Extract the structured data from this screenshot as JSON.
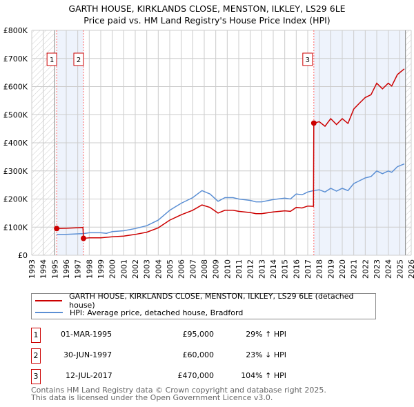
{
  "title_line1": "GARTH HOUSE, KIRKLANDS CLOSE, MENSTON, ILKLEY, LS29 6LE",
  "title_line2": "Price paid vs. HM Land Registry's House Price Index (HPI)",
  "chart_data": {
    "type": "line",
    "title": "GARTH HOUSE, KIRKLANDS CLOSE, MENSTON, ILKLEY, LS29 6LE - Price paid vs. HM Land Registry's House Price Index (HPI)",
    "xlim": [
      1993,
      2026
    ],
    "ylim": [
      0,
      800000
    ],
    "x_ticks": [
      "1993",
      "1994",
      "1995",
      "1996",
      "1997",
      "1998",
      "1999",
      "2000",
      "2001",
      "2002",
      "2003",
      "2004",
      "2005",
      "2006",
      "2007",
      "2008",
      "2009",
      "2010",
      "2011",
      "2012",
      "2013",
      "2014",
      "2015",
      "2016",
      "2017",
      "2018",
      "2019",
      "2020",
      "2021",
      "2022",
      "2023",
      "2024",
      "2025",
      "2026"
    ],
    "y_ticks": [
      {
        "v": 0,
        "l": "£0"
      },
      {
        "v": 100000,
        "l": "£100K"
      },
      {
        "v": 200000,
        "l": "£200K"
      },
      {
        "v": 300000,
        "l": "£300K"
      },
      {
        "v": 400000,
        "l": "£400K"
      },
      {
        "v": 500000,
        "l": "£500K"
      },
      {
        "v": 600000,
        "l": "£600K"
      },
      {
        "v": 700000,
        "l": "£700K"
      },
      {
        "v": 800000,
        "l": "£800K"
      }
    ],
    "grid": true,
    "data_range": [
      1995.0,
      2025.5
    ],
    "series": [
      {
        "name": "GARTH HOUSE, KIRKLANDS CLOSE, MENSTON, ILKLEY, LS29 6LE (detached house)",
        "color": "#cc0000",
        "x": [
          1995.17,
          1996,
          1997,
          1997.45,
          1997.5,
          1998,
          1999,
          2000,
          2001,
          2002,
          2003,
          2004,
          2005,
          2006,
          2007,
          2007.8,
          2008.5,
          2009.2,
          2009.8,
          2010.5,
          2011,
          2012,
          2012.5,
          2013,
          2014,
          2015,
          2015.5,
          2016,
          2016.5,
          2017,
          2017.5,
          2017.53,
          2018,
          2018.5,
          2019,
          2019.5,
          2020,
          2020.5,
          2021,
          2021.5,
          2022,
          2022.5,
          2023,
          2023.5,
          2024,
          2024.3,
          2024.8,
          2025.4
        ],
        "y": [
          95000,
          96000,
          98000,
          99000,
          60000,
          62000,
          62000,
          65500,
          68000,
          74000,
          82000,
          97500,
          125000,
          144000,
          160000,
          179000,
          170000,
          150000,
          160000,
          160000,
          156000,
          152000,
          148000,
          148000,
          154000,
          158000,
          156000,
          170000,
          168000,
          175000,
          174000,
          470000,
          475000,
          459000,
          486000,
          465000,
          486000,
          469000,
          520000,
          541000,
          561000,
          571000,
          612000,
          592000,
          612000,
          602000,
          643000,
          663000
        ]
      },
      {
        "name": "HPI: Average price, detached house, Bradford",
        "color": "#5b8fd4",
        "x": [
          1995.17,
          1996,
          1997,
          1997.5,
          1998,
          1999,
          1999.5,
          2000,
          2001,
          2002,
          2003,
          2004,
          2005,
          2006,
          2007,
          2007.8,
          2008.5,
          2009.2,
          2009.8,
          2010.5,
          2011,
          2012,
          2012.5,
          2013,
          2014,
          2015,
          2015.5,
          2016,
          2016.5,
          2017,
          2017.5,
          2018,
          2018.5,
          2019,
          2019.5,
          2020,
          2020.5,
          2021,
          2021.5,
          2022,
          2022.5,
          2023,
          2023.5,
          2024,
          2024.3,
          2024.8,
          2025.4
        ],
        "y": [
          74000,
          74000,
          76000,
          77000,
          80000,
          80000,
          78000,
          84000,
          87000,
          95000,
          105000,
          125000,
          160000,
          185000,
          205000,
          230000,
          218000,
          192000,
          205000,
          205000,
          200000,
          195000,
          190000,
          190000,
          198000,
          203000,
          200000,
          218000,
          215000,
          225000,
          230000,
          233000,
          225000,
          238000,
          228000,
          238000,
          230000,
          255000,
          265000,
          275000,
          280000,
          300000,
          290000,
          300000,
          295000,
          315000,
          325000
        ]
      }
    ],
    "sales": [
      {
        "n": "1",
        "x": 1995.17,
        "y": 95000
      },
      {
        "n": "2",
        "x": 1997.5,
        "y": 60000
      },
      {
        "n": "3",
        "x": 2017.53,
        "y": 470000
      }
    ]
  },
  "legend": [
    {
      "label": "GARTH HOUSE, KIRKLANDS CLOSE, MENSTON, ILKLEY, LS29 6LE (detached house)",
      "color": "#cc0000"
    },
    {
      "label": "HPI: Average price, detached house, Bradford",
      "color": "#5b8fd4"
    }
  ],
  "transactions": [
    {
      "n": "1",
      "date": "01-MAR-1995",
      "price": "£95,000",
      "hpi": "29% ↑ HPI"
    },
    {
      "n": "2",
      "date": "30-JUN-1997",
      "price": "£60,000",
      "hpi": "23% ↓ HPI"
    },
    {
      "n": "3",
      "date": "12-JUL-2017",
      "price": "£470,000",
      "hpi": "104% ↑ HPI"
    }
  ],
  "footer_line1": "Contains HM Land Registry data © Crown copyright and database right 2025.",
  "footer_line2": "This data is licensed under the Open Government Licence v3.0."
}
